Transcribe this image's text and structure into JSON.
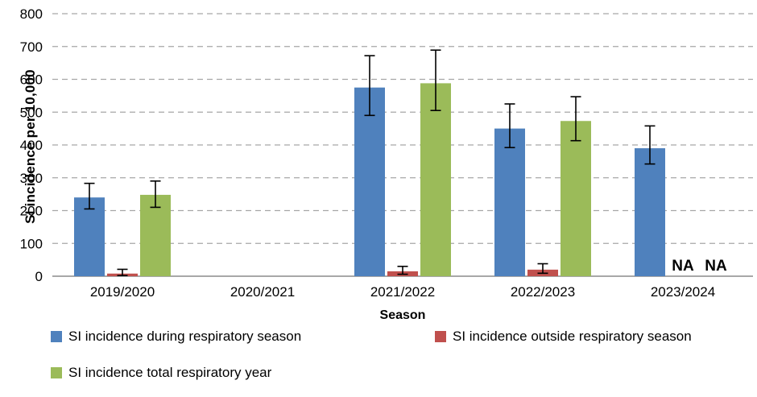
{
  "chart_data": {
    "type": "bar",
    "title": "",
    "ylabel": "SI incidence per 10,000",
    "xlabel": "Season",
    "ylim": [
      0,
      800
    ],
    "ytick_interval": 100,
    "grid": "horizontal-dashed",
    "legend_position": "bottom",
    "na_text": "NA",
    "categories": [
      "2019/2020",
      "2020/2021",
      "2021/2022",
      "2022/2023",
      "2023/2024"
    ],
    "series": [
      {
        "name": "SI incidence during respiratory season",
        "color": "#4F81BD",
        "values": [
          240,
          null,
          575,
          450,
          390
        ],
        "error_low": [
          205,
          null,
          490,
          392,
          342
        ],
        "error_high": [
          283,
          null,
          672,
          525,
          458
        ]
      },
      {
        "name": "SI incidence outside respiratory season",
        "color": "#C0504D",
        "values": [
          8,
          null,
          15,
          20,
          "NA"
        ],
        "error_low": [
          2,
          null,
          6,
          9,
          null
        ],
        "error_high": [
          21,
          null,
          30,
          38,
          null
        ]
      },
      {
        "name": "SI incidence total respiratory year",
        "color": "#9BBB59",
        "values": [
          248,
          null,
          588,
          473,
          "NA"
        ],
        "error_low": [
          210,
          null,
          505,
          413,
          null
        ],
        "error_high": [
          290,
          null,
          689,
          547,
          null
        ]
      }
    ],
    "style": {
      "gridline_color": "#A6A6A6",
      "axis_line_color": "#8C8C8C",
      "error_bar_color": "#000000",
      "text_color": "#000000"
    }
  }
}
